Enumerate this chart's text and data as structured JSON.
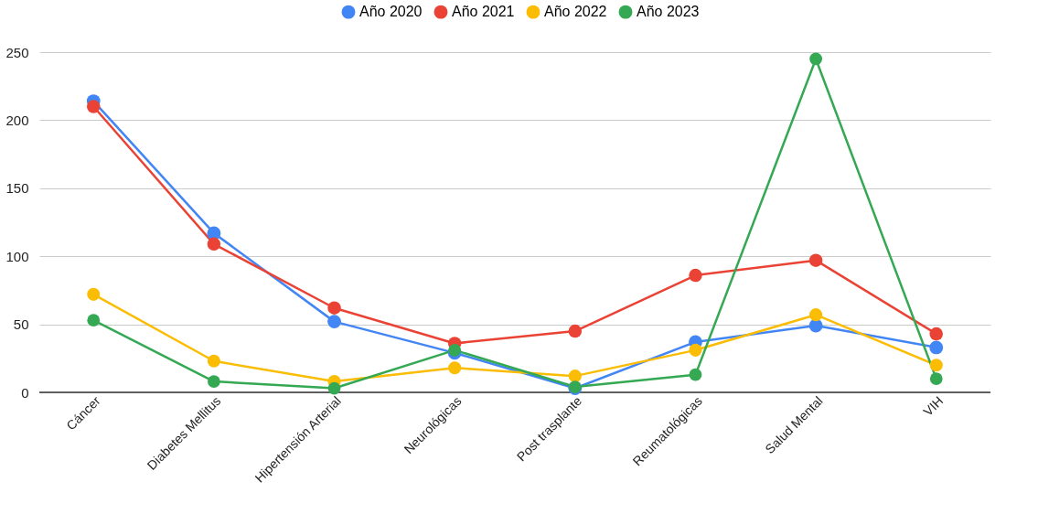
{
  "chart_data": {
    "type": "line",
    "categories": [
      "Cáncer",
      "Diabetes Mellitus",
      "Hipertensión Arterial",
      "Neurológicas",
      "Post trasplante",
      "Reumatológicas",
      "Salud Mental",
      "VIH"
    ],
    "series": [
      {
        "name": "Año 2020",
        "color": "#4285f4",
        "values": [
          214,
          117,
          52,
          29,
          3,
          37,
          49,
          33
        ]
      },
      {
        "name": "Año 2021",
        "color": "#ea4335",
        "values": [
          210,
          109,
          62,
          36,
          45,
          86,
          97,
          43
        ]
      },
      {
        "name": "Año 2022",
        "color": "#fbbc04",
        "values": [
          72,
          23,
          8,
          18,
          12,
          31,
          57,
          20
        ]
      },
      {
        "name": "Año 2023",
        "color": "#34a853",
        "values": [
          53,
          8,
          3,
          31,
          4,
          13,
          245,
          10
        ]
      }
    ],
    "ylim": [
      0,
      250
    ],
    "yticks": [
      0,
      50,
      100,
      150,
      200,
      250
    ],
    "grid": "y",
    "legend": "top",
    "marker": "circle",
    "line_style": "solid"
  }
}
